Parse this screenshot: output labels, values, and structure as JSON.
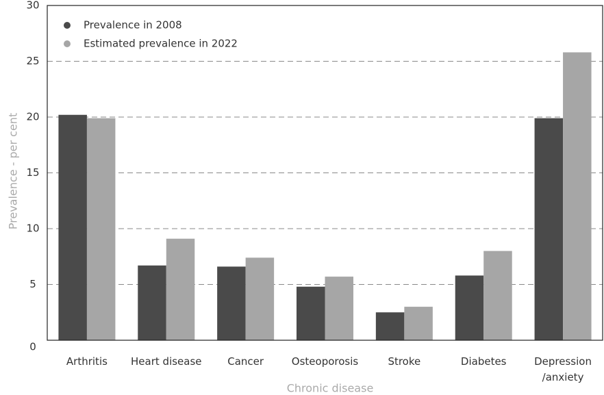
{
  "chart_data": {
    "type": "bar",
    "x_label": "Chronic disease",
    "y_label": "Prevalence - per cent",
    "categories": [
      "Arthritis",
      "Heart disease",
      "Cancer",
      "Osteoporosis",
      "Stroke",
      "Diabetes",
      "Depression /anxiety"
    ],
    "series": [
      {
        "name": "Prevalence in 2008",
        "color": "#4a4a4a",
        "values": [
          20.2,
          6.7,
          6.6,
          4.8,
          2.5,
          5.8,
          19.9
        ]
      },
      {
        "name": "Estimated prevalence in 2022",
        "color": "#a6a6a6",
        "values": [
          19.9,
          9.1,
          7.4,
          5.7,
          3.0,
          8.0,
          25.8
        ]
      }
    ],
    "ylim": [
      0,
      30
    ],
    "yticks": [
      0,
      5,
      10,
      15,
      20,
      25,
      30
    ],
    "grid": true,
    "legend": "upper left"
  }
}
